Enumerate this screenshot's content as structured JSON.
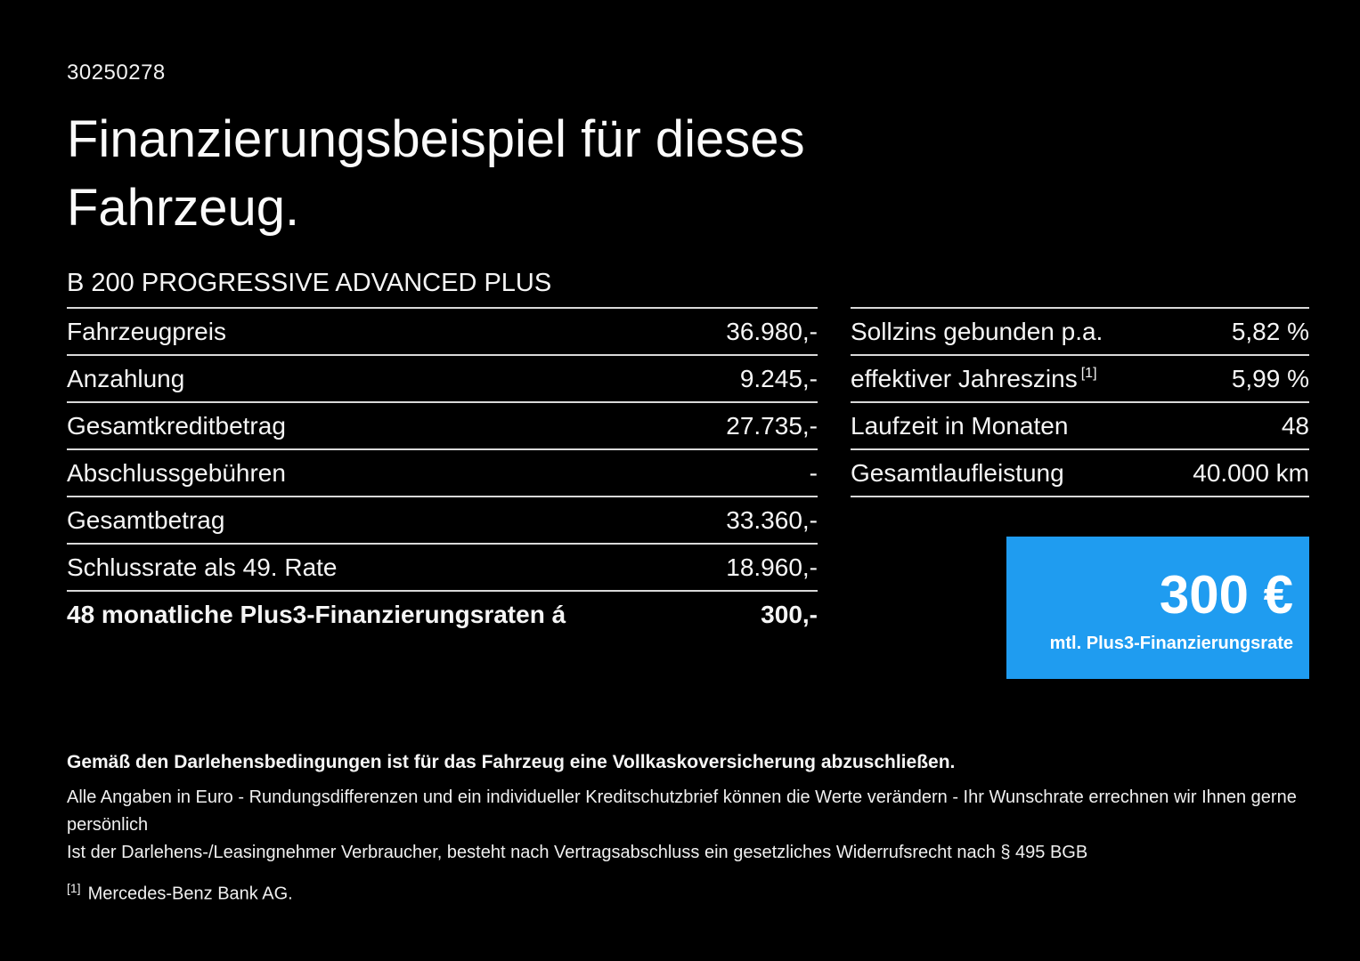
{
  "page": {
    "id_number": "30250278",
    "title_line1": "Finanzierungsbeispiel für dieses",
    "title_line2": "Fahrzeug.",
    "vehicle_model": "B 200 PROGRESSIVE ADVANCED PLUS"
  },
  "left_table": {
    "rows": [
      {
        "label": "Fahrzeugpreis",
        "value": "36.980,-"
      },
      {
        "label": "Anzahlung",
        "value": "9.245,-"
      },
      {
        "label": "Gesamtkreditbetrag",
        "value": "27.735,-"
      },
      {
        "label": "Abschlussgebühren",
        "value": "-"
      },
      {
        "label": "Gesamtbetrag",
        "value": "33.360,-"
      },
      {
        "label": "Schlussrate als 49. Rate",
        "value": "18.960,-"
      },
      {
        "label": "48 monatliche Plus3-Finanzierungsraten á",
        "value": "300,-"
      }
    ]
  },
  "right_table": {
    "rows": [
      {
        "label": "Sollzins gebunden p.a.",
        "value": "5,82 %"
      },
      {
        "label": "effektiver Jahreszins",
        "sup": "[1]",
        "value": "5,99 %"
      },
      {
        "label": "Laufzeit in Monaten",
        "value": "48"
      },
      {
        "label": "Gesamtlaufleistung",
        "value": "40.000 km"
      }
    ]
  },
  "rate_box": {
    "amount": "300 €",
    "caption": "mtl. Plus3-Finanzierungsrate",
    "background": "#1f9cf0"
  },
  "footer": {
    "bold_note": "Gemäß den Darlehensbedingungen ist für das Fahrzeug eine Vollkaskoversicherung abzuschließen.",
    "note1": "Alle Angaben in Euro - Rundungsdifferenzen und ein individueller Kreditschutzbrief können die Werte verändern - Ihr Wunschrate errechnen wir Ihnen gerne persönlich",
    "note2": "Ist der Darlehens-/Leasingnehmer Verbraucher, besteht nach Vertragsabschluss ein gesetzliches Widerrufsrecht nach § 495 BGB",
    "footnote_marker": "[1]",
    "footnote_text": "Mercedes-Benz Bank AG."
  }
}
